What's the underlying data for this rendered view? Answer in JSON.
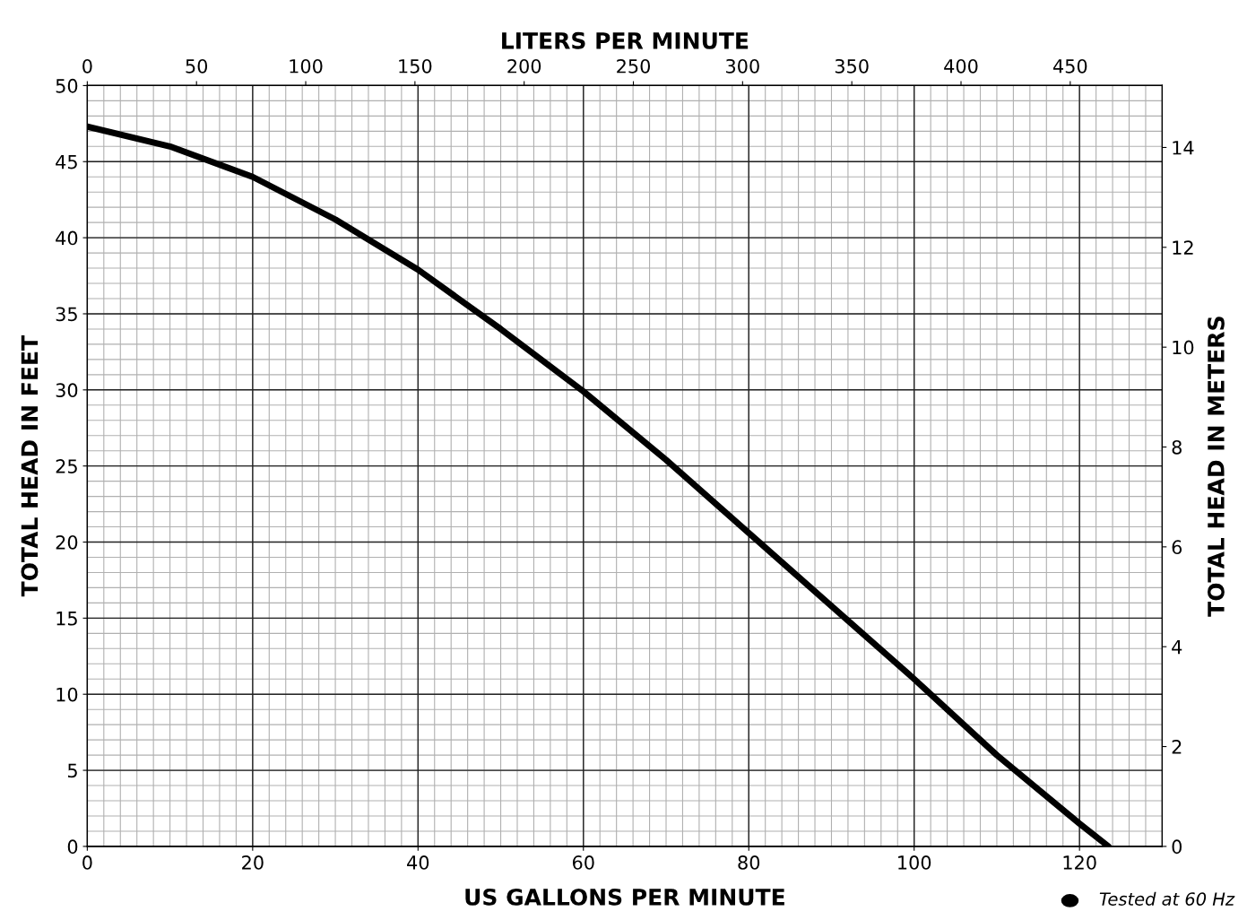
{
  "chart_data": {
    "type": "line",
    "xlabel": "US GALLONS PER MINUTE",
    "ylabel": "TOTAL HEAD IN FEET",
    "y2label": "TOTAL HEAD IN METERS",
    "x2label": "LITERS PER MINUTE",
    "x": [
      0,
      10,
      20,
      30,
      40,
      50,
      60,
      70,
      80,
      90,
      100,
      110,
      120,
      123.5
    ],
    "series": [
      {
        "color": "#000000",
        "values": [
          47.3,
          46.0,
          44.0,
          41.2,
          37.9,
          34.0,
          29.9,
          25.4,
          20.6,
          15.8,
          11.0,
          6.0,
          1.5,
          0
        ]
      }
    ],
    "xlim": [
      0,
      130
    ],
    "xticks": [
      0,
      20,
      40,
      60,
      80,
      100,
      120
    ],
    "ylim": [
      0,
      50
    ],
    "yticks": [
      0,
      5,
      10,
      15,
      20,
      25,
      30,
      35,
      40,
      45,
      50
    ],
    "x2lim": [
      0,
      492.1
    ],
    "x2ticks": [
      0,
      50,
      100,
      150,
      200,
      250,
      300,
      350,
      400,
      450
    ],
    "y2lim": [
      0,
      15.24
    ],
    "y2ticks": [
      0,
      2,
      4,
      6,
      8,
      10,
      12,
      14
    ],
    "grid": true,
    "marker": "none",
    "line_style": "solid",
    "annotations": [
      "Tested at 60 Hz"
    ]
  }
}
